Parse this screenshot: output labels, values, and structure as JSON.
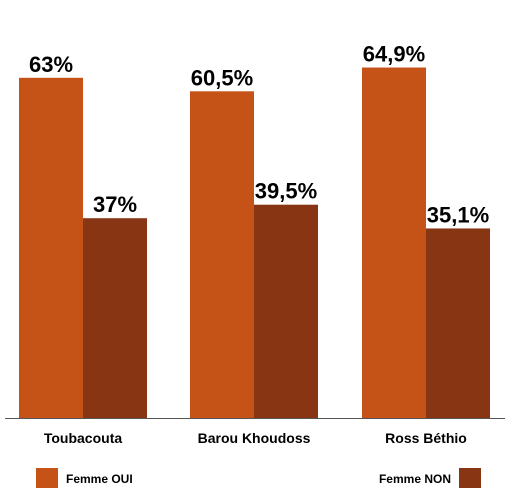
{
  "colors": {
    "oui": "#C55217",
    "non": "#873513",
    "axis": "#555555"
  },
  "chart_data": {
    "type": "bar",
    "categories": [
      "Toubacouta",
      "Barou Khoudoss",
      "Ross Béthio"
    ],
    "series": [
      {
        "name": "Femme OUI",
        "values": [
          63,
          60.5,
          64.9
        ],
        "labels": [
          "63%",
          "60,5%",
          "64,9%"
        ],
        "color": "#C55217"
      },
      {
        "name": "Femme NON",
        "values": [
          37,
          39.5,
          35.1
        ],
        "labels": [
          "37%",
          "39,5%",
          "35,1%"
        ],
        "color": "#873513"
      }
    ],
    "ylim": [
      0,
      100
    ],
    "grid": false,
    "legend_position": "bottom",
    "title": "",
    "xlabel": "",
    "ylabel": ""
  }
}
